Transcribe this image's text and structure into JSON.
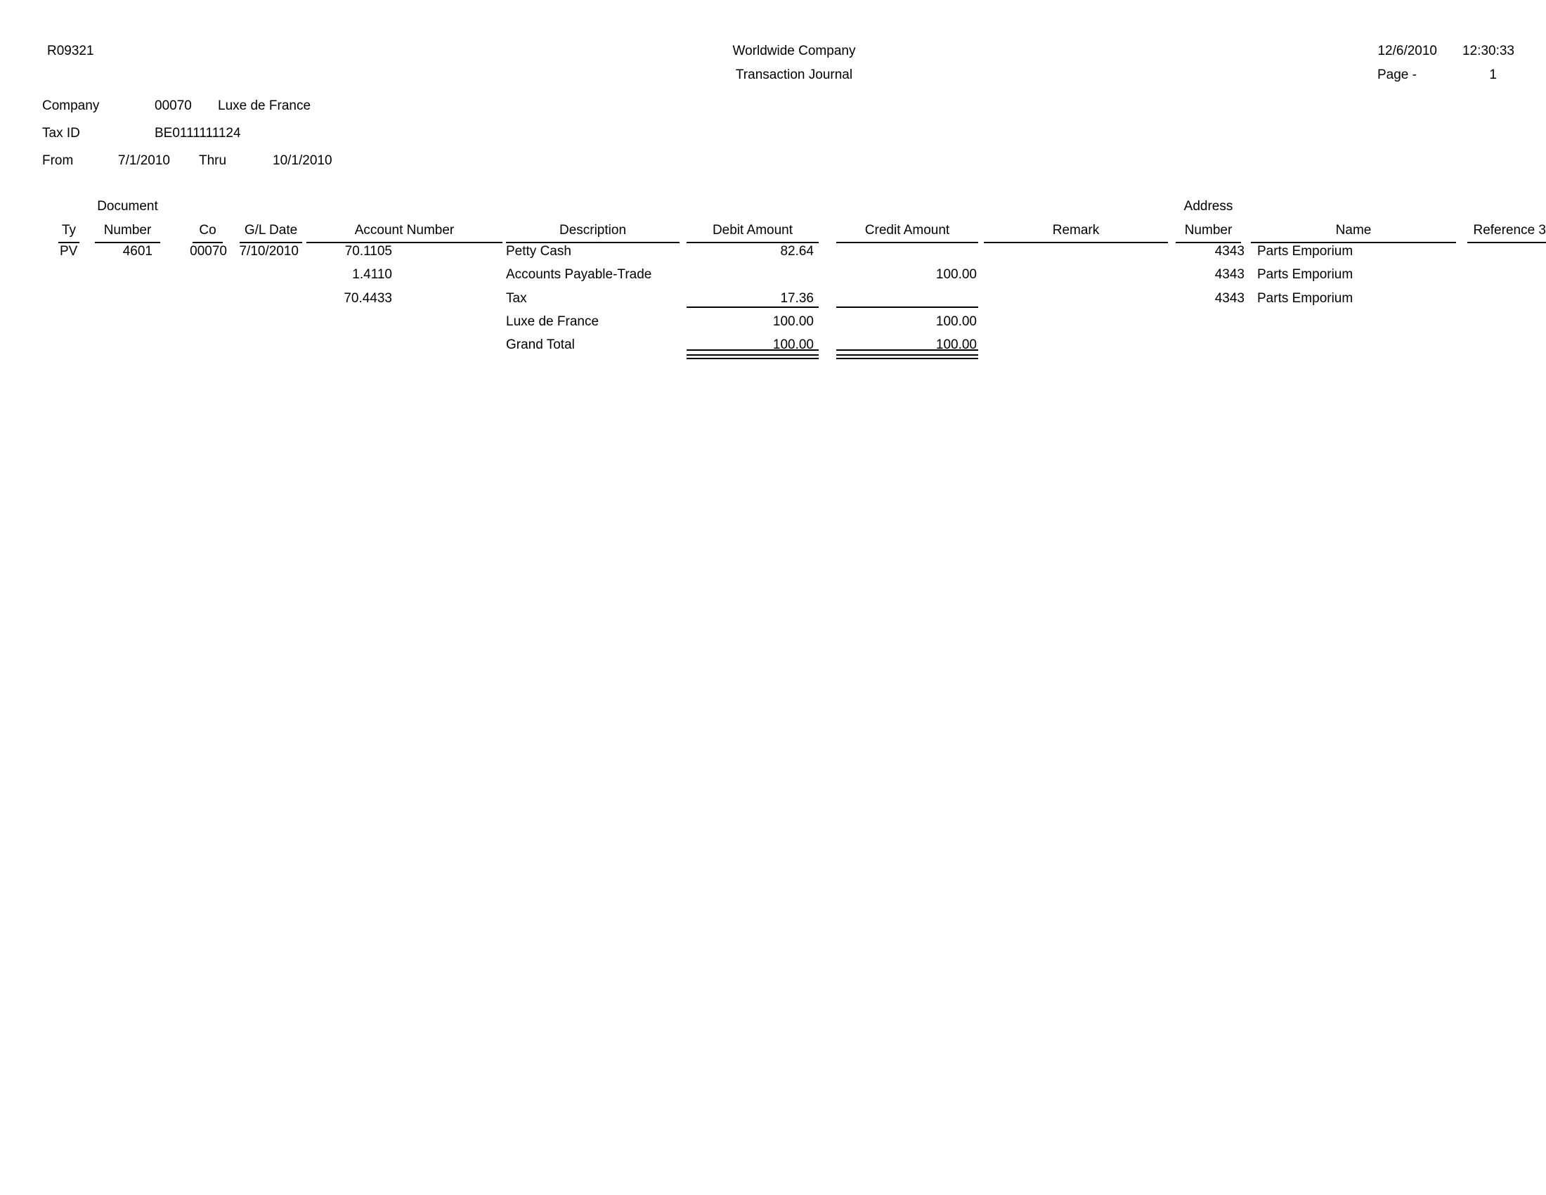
{
  "report": {
    "report_id": "R09321",
    "company_name": "Worldwide Company",
    "report_title": "Transaction Journal",
    "date": "12/6/2010",
    "time": "12:30:33",
    "page_label": "Page -",
    "page_number": "1"
  },
  "info": {
    "company_label": "Company",
    "company_code": "00070",
    "company_name": "Luxe de France",
    "tax_id_label": "Tax ID",
    "tax_id": "BE0111111124",
    "from_label": "From",
    "from_date": "7/1/2010",
    "thru_label": "Thru",
    "thru_date": "10/1/2010"
  },
  "table": {
    "group_headers": {
      "document": "Document",
      "address": "Address"
    },
    "headers": {
      "ty": "Ty",
      "number": "Number",
      "co": "Co",
      "gl_date": "G/L Date",
      "account_number": "Account Number",
      "description": "Description",
      "debit_amount": "Debit Amount",
      "credit_amount": "Credit Amount",
      "remark": "Remark",
      "address_number": "Number",
      "name": "Name",
      "reference3": "Reference 3"
    },
    "rows": [
      {
        "ty": "PV",
        "number": "4601",
        "co": "00070",
        "gl_date": "7/10/2010",
        "account": "70.1105",
        "description": "Petty Cash",
        "debit": "82.64",
        "credit": "",
        "address": "4343",
        "name": "Parts Emporium"
      },
      {
        "account": "1.4110",
        "description": "Accounts Payable-Trade",
        "debit": "",
        "credit": "100.00",
        "address": "4343",
        "name": "Parts Emporium"
      },
      {
        "account": "70.4433",
        "description": "Tax",
        "debit": "17.36",
        "credit": "",
        "address": "4343",
        "name": "Parts Emporium"
      },
      {
        "description": "Luxe de France",
        "debit": "100.00",
        "credit": "100.00"
      },
      {
        "description": "Grand Total",
        "debit": "100.00",
        "credit": "100.00"
      }
    ]
  },
  "colors": {
    "text": "#000000",
    "background": "#ffffff"
  }
}
